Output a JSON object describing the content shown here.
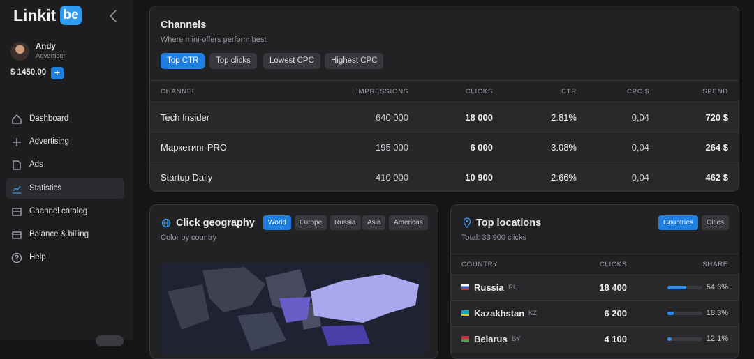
{
  "sidebar": {
    "logo": "Linkit",
    "logo_badge": "be",
    "user": {
      "name": "Andy",
      "role": "Advertiser"
    },
    "balance": "$ 1450.00",
    "add_button": "+",
    "nav": [
      "Dashboard",
      "Advertising",
      "Ads",
      "Statistics",
      "Channel catalog",
      "Balance & billing",
      "Help"
    ],
    "active_nav": 3
  },
  "channels": {
    "title": "Channels",
    "subtitle": "Where mini-offers perform best",
    "filters": [
      "Top CTR",
      "Top clicks",
      "Lowest CPC",
      "Highest CPC"
    ],
    "active_filter": 0,
    "columns": [
      "CHANNEL",
      "IMPRESSIONS",
      "CLICKS",
      "CTR",
      "CPC $",
      "SPEND"
    ],
    "rows": [
      [
        "Tech Insider",
        "640 000",
        "18 000",
        "2.81%",
        "0,04",
        "720 $"
      ],
      [
        "Маркетинг PRO",
        "195 000",
        "6 000",
        "3.08%",
        "0,04",
        "264 $"
      ],
      [
        "Startup Daily",
        "410 000",
        "10 900",
        "2.66%",
        "0,04",
        "462 $"
      ]
    ]
  },
  "geography": {
    "title": "Click geography",
    "subtitle": "Color by country",
    "filters": [
      "World",
      "Europe",
      "Russia",
      "Asia",
      "Americas"
    ],
    "active_filter": 0
  },
  "locations": {
    "title": "Top locations",
    "total": "Total: 33 900 clicks",
    "filters": [
      "Countries",
      "Cities"
    ],
    "active_filter": 0,
    "columns": [
      "COUNTRY",
      "CLICKS",
      "SHARE"
    ],
    "rows": [
      {
        "country": "Russia",
        "code": "RU",
        "clicks": "18 400",
        "share": "54.3%"
      },
      {
        "country": "Kazakhstan",
        "code": "KZ",
        "clicks": "6 200",
        "share": "18.3%"
      },
      {
        "country": "Belarus",
        "code": "BY",
        "clicks": "4 100",
        "share": "12.1%"
      }
    ]
  }
}
